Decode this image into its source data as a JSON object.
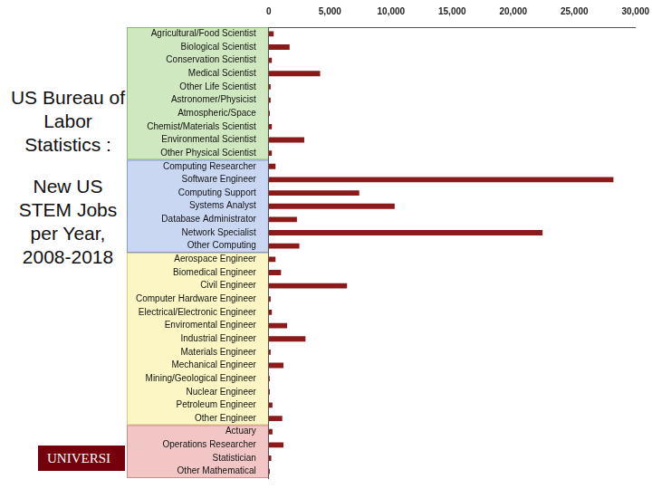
{
  "chart_data": {
    "type": "bar",
    "orientation": "horizontal",
    "subtitle": "US Bureau of Labor Statistics :",
    "title": "New US STEM Jobs per Year, 2008-2018",
    "annotations": [
      "UNIVERSI"
    ],
    "categories": [
      "Agricultural/Food Scientist",
      "Biological Scientist",
      "Conservation Scientist",
      "Medical Scientist",
      "Other Life Scientist",
      "Astronomer/Physicist",
      "Atmospheric/Space",
      "Chemist/Materials Scientist",
      "Environmental Scientist",
      "Other Physical Scientist",
      "Computing Researcher",
      "Software Engineer",
      "Computing Support",
      "Systems Analyst",
      "Database Administrator",
      "Network Specialist",
      "Other Computing",
      "Aerospace Engineer",
      "Biomedical Engineer",
      "Civil Engineer",
      "Computer Hardware Engineer",
      "Electrical/Electronic Engineer",
      "Enviromental Engineer",
      "Industrial Engineer",
      "Materials Engineer",
      "Mechanical Engineer",
      "Mining/Geological Engineer",
      "Nuclear Engineer",
      "Petroleum Engineer",
      "Other Engineer",
      "Actuary",
      "Operations Researcher",
      "Statistician",
      "Other Mathematical"
    ],
    "values": [
      400,
      1700,
      250,
      4200,
      150,
      150,
      80,
      250,
      2900,
      250,
      550,
      28200,
      7400,
      10300,
      2300,
      22400,
      2500,
      550,
      1000,
      6400,
      150,
      250,
      1500,
      3000,
      150,
      1200,
      80,
      80,
      300,
      1100,
      300,
      1200,
      200,
      80
    ],
    "color": "#8b1a1a",
    "xlim": [
      0,
      30000
    ],
    "xticks": [
      0,
      {
        "value": 5000,
        "label": "5,000"
      },
      {
        "value": 10000,
        "label": "10,000"
      },
      {
        "value": 15000,
        "label": "15,000"
      },
      {
        "value": 20000,
        "label": "20,000"
      },
      {
        "value": 25000,
        "label": "25,000"
      },
      {
        "value": 30000,
        "label": "30,000"
      }
    ],
    "grid": false
  }
}
